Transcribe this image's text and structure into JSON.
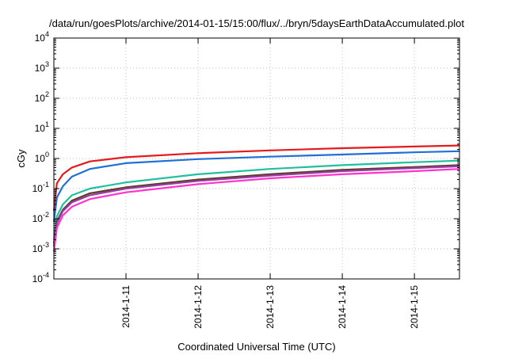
{
  "chart_data": {
    "type": "line",
    "title": "/data/run/goesPlots/archive/2014-01-15/15:00/flux/../bryn/5daysEarthDataAccumulated.plot",
    "xlabel": "Coordinated Universal Time (UTC)",
    "ylabel": "cGy",
    "x_scale": "date",
    "xlim": [
      "2014-01-10T00:00",
      "2014-01-15T15:00"
    ],
    "x_ticks": [
      "2014-1-11",
      "2014-1-12",
      "2014-1-13",
      "2014-1-14",
      "2014-1-15"
    ],
    "y_scale": "log",
    "ylim": [
      0.0001,
      10000
    ],
    "y_ticks": [
      {
        "value": 0.0001,
        "base": "10",
        "exp": "-4"
      },
      {
        "value": 0.001,
        "base": "10",
        "exp": "-3"
      },
      {
        "value": 0.01,
        "base": "10",
        "exp": "-2"
      },
      {
        "value": 0.1,
        "base": "10",
        "exp": "-1"
      },
      {
        "value": 1,
        "base": "10",
        "exp": "0"
      },
      {
        "value": 10,
        "base": "10",
        "exp": "1"
      },
      {
        "value": 100,
        "base": "10",
        "exp": "2"
      },
      {
        "value": 1000,
        "base": "10",
        "exp": "3"
      },
      {
        "value": 10000,
        "base": "10",
        "exp": "4"
      }
    ],
    "grid": true,
    "series": [
      {
        "color": "#e41a1c",
        "x": [
          "2014-01-10T00:00",
          "2014-01-10T01:00",
          "2014-01-10T03:00",
          "2014-01-10T06:00",
          "2014-01-10T12:00",
          "2014-01-11T00:00",
          "2014-01-12T00:00",
          "2014-01-13T00:00",
          "2014-01-14T00:00",
          "2014-01-15T00:00",
          "2014-01-15T15:00"
        ],
        "values": [
          0.018,
          0.15,
          0.3,
          0.5,
          0.8,
          1.1,
          1.5,
          1.85,
          2.2,
          2.5,
          2.7
        ]
      },
      {
        "color": "#1f6fd6",
        "x": [
          "2014-01-10T00:00",
          "2014-01-10T01:00",
          "2014-01-10T03:00",
          "2014-01-10T06:00",
          "2014-01-10T12:00",
          "2014-01-11T00:00",
          "2014-01-12T00:00",
          "2014-01-13T00:00",
          "2014-01-14T00:00",
          "2014-01-15T00:00",
          "2014-01-15T15:00"
        ],
        "values": [
          0.008,
          0.05,
          0.12,
          0.25,
          0.45,
          0.7,
          0.95,
          1.15,
          1.35,
          1.6,
          1.75
        ]
      },
      {
        "color": "#1fbfa0",
        "x": [
          "2014-01-10T00:00",
          "2014-01-10T01:00",
          "2014-01-10T03:00",
          "2014-01-10T06:00",
          "2014-01-10T12:00",
          "2014-01-11T00:00",
          "2014-01-12T00:00",
          "2014-01-13T00:00",
          "2014-01-14T00:00",
          "2014-01-15T00:00",
          "2014-01-15T15:00"
        ],
        "values": [
          0.002,
          0.012,
          0.03,
          0.06,
          0.1,
          0.16,
          0.3,
          0.45,
          0.6,
          0.75,
          0.85
        ]
      },
      {
        "color": "#5a3d1e",
        "x": [
          "2014-01-10T00:00",
          "2014-01-10T01:00",
          "2014-01-10T03:00",
          "2014-01-10T06:00",
          "2014-01-10T12:00",
          "2014-01-11T00:00",
          "2014-01-12T00:00",
          "2014-01-13T00:00",
          "2014-01-14T00:00",
          "2014-01-15T00:00",
          "2014-01-15T15:00"
        ],
        "values": [
          0.0015,
          0.008,
          0.02,
          0.04,
          0.07,
          0.11,
          0.2,
          0.3,
          0.42,
          0.52,
          0.6
        ]
      },
      {
        "color": "#9b3aa8",
        "x": [
          "2014-01-10T00:00",
          "2014-01-10T01:00",
          "2014-01-10T03:00",
          "2014-01-10T06:00",
          "2014-01-10T12:00",
          "2014-01-11T00:00",
          "2014-01-12T00:00",
          "2014-01-13T00:00",
          "2014-01-14T00:00",
          "2014-01-15T00:00",
          "2014-01-15T15:00"
        ],
        "values": [
          0.0012,
          0.007,
          0.018,
          0.035,
          0.06,
          0.1,
          0.18,
          0.27,
          0.38,
          0.48,
          0.55
        ]
      },
      {
        "color": "#ff33cc",
        "x": [
          "2014-01-10T00:00",
          "2014-01-10T01:00",
          "2014-01-10T03:00",
          "2014-01-10T06:00",
          "2014-01-10T12:00",
          "2014-01-11T00:00",
          "2014-01-12T00:00",
          "2014-01-13T00:00",
          "2014-01-14T00:00",
          "2014-01-15T00:00",
          "2014-01-15T15:00"
        ],
        "values": [
          0.0008,
          0.005,
          0.013,
          0.025,
          0.045,
          0.075,
          0.14,
          0.22,
          0.3,
          0.38,
          0.45
        ]
      }
    ]
  }
}
